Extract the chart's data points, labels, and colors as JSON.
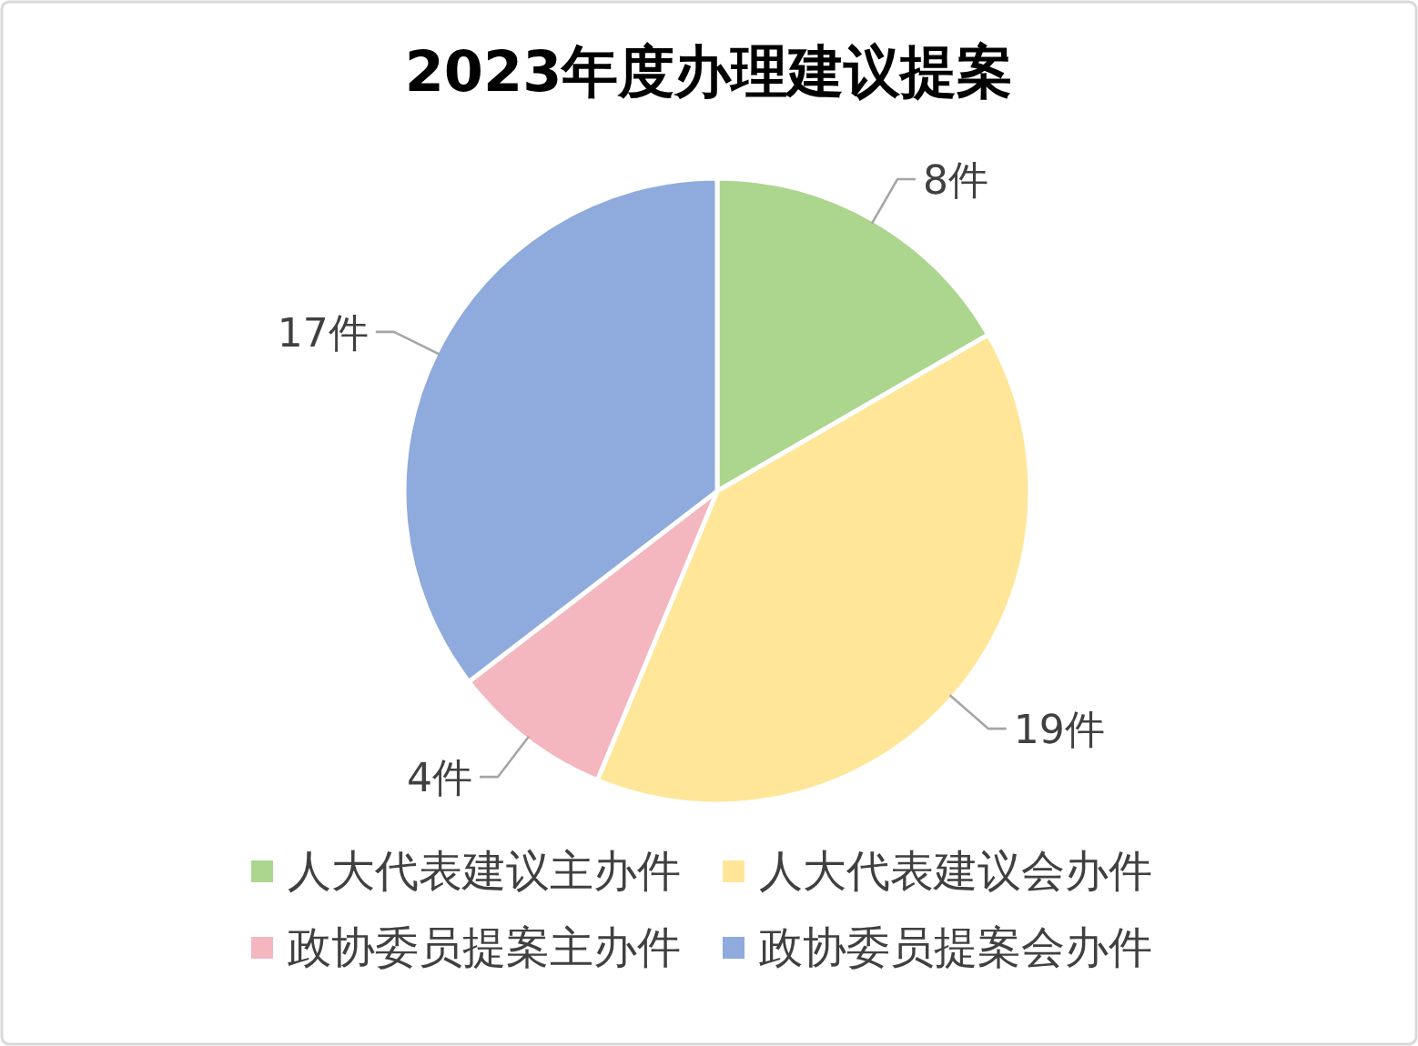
{
  "chart_data": {
    "type": "pie",
    "title": "2023年度办理建议提案",
    "categories": [
      "人大代表建议主办件",
      "人大代表建议会办件",
      "政协委员提案主办件",
      "政协委员提案会办件"
    ],
    "values": [
      8,
      19,
      4,
      17
    ],
    "colors": [
      "#acd68e",
      "#ffe699",
      "#f4b6bf",
      "#8faadc"
    ],
    "value_labels": [
      "8件",
      "19件",
      "4件",
      "17件"
    ],
    "legend": "bottom"
  }
}
